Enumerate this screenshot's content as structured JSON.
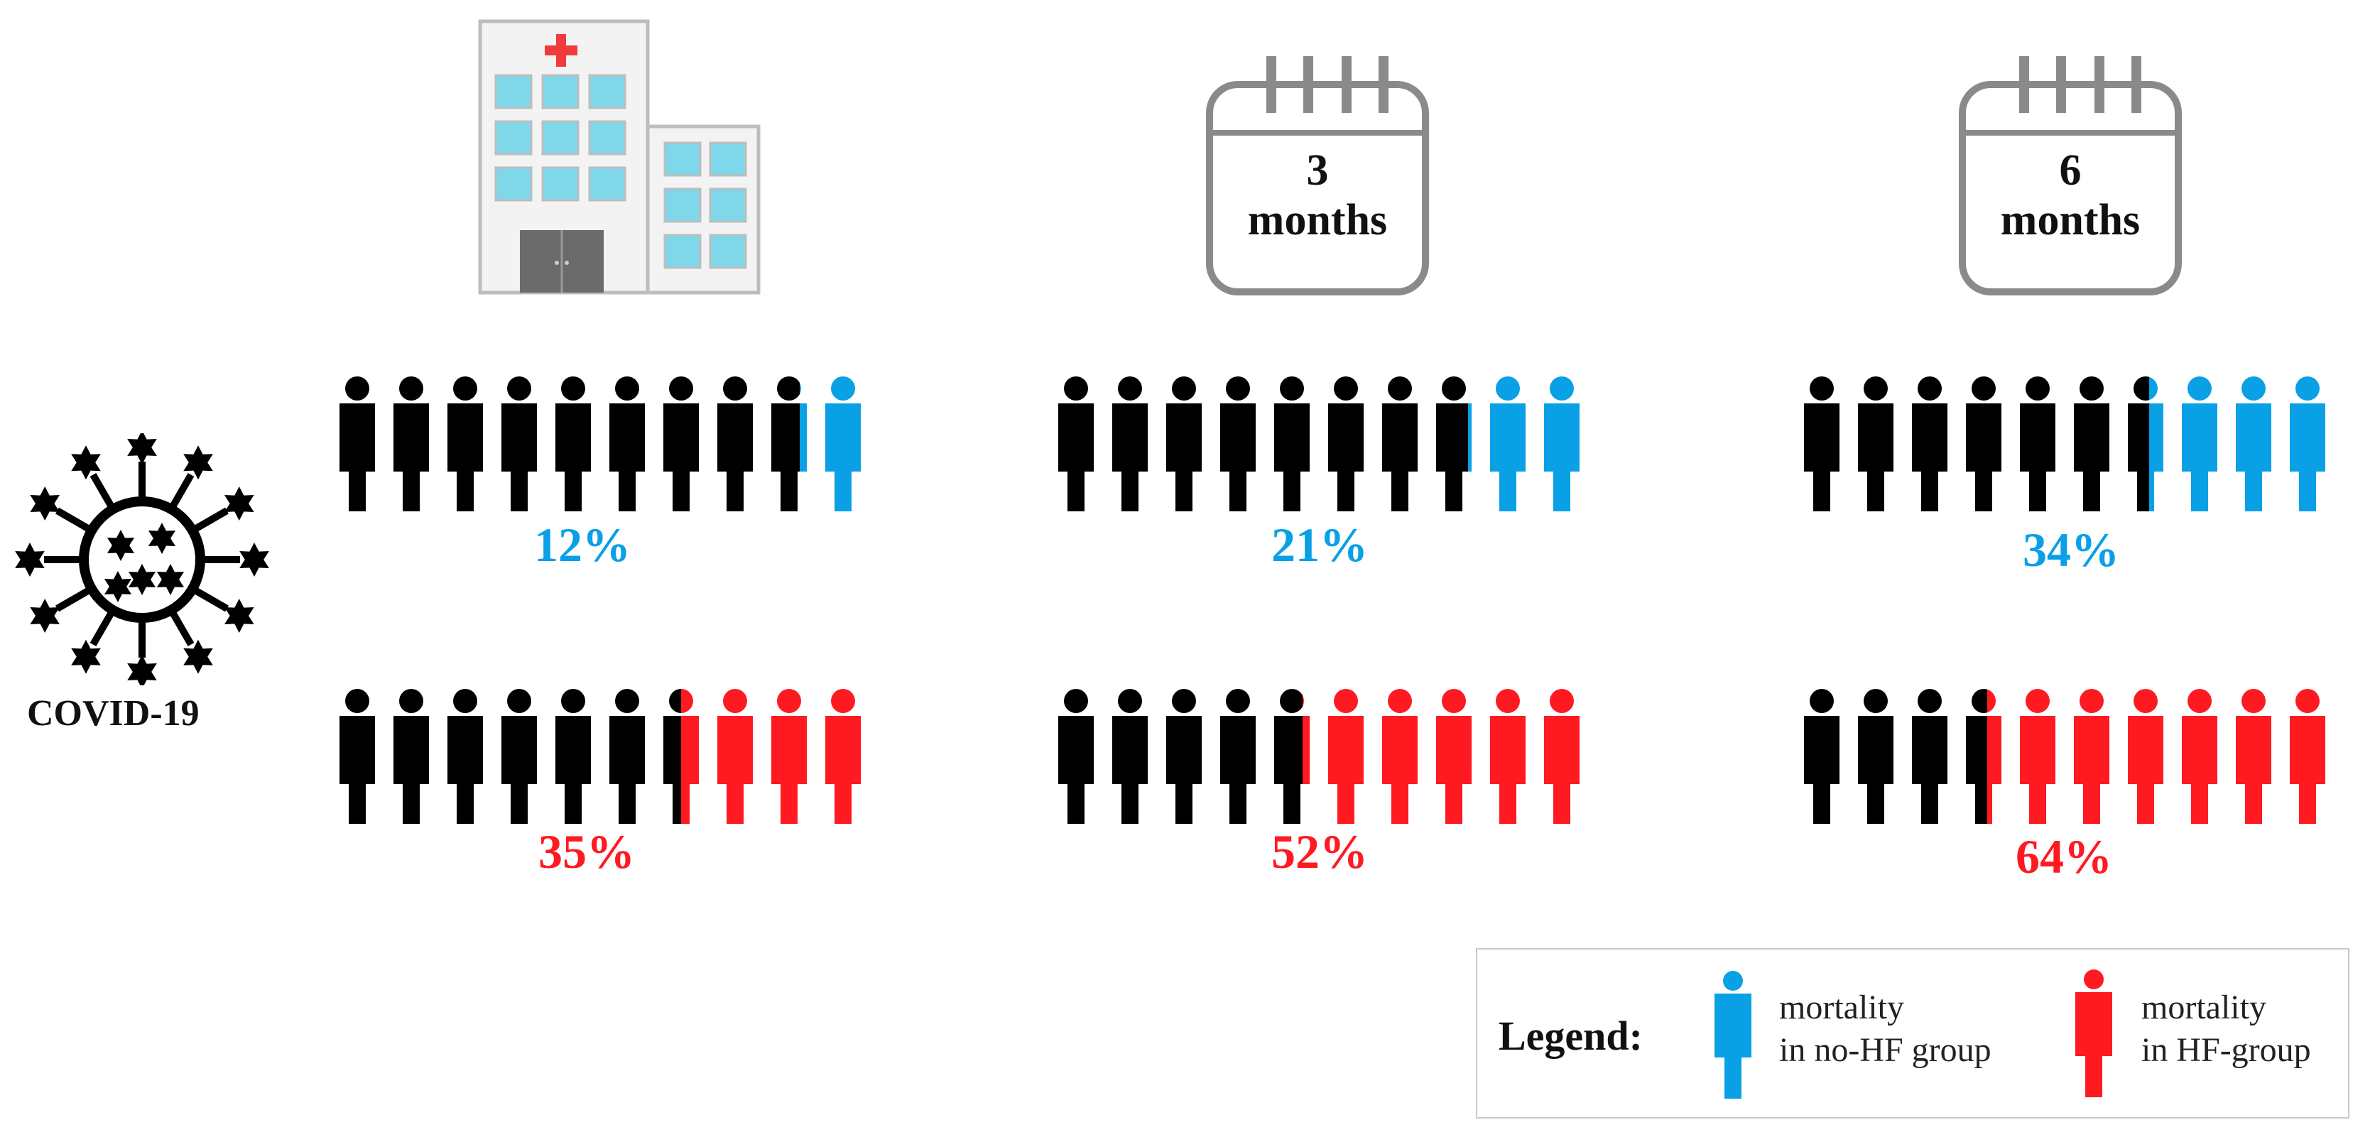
{
  "colors": {
    "no_hf": "#0aa0e6",
    "hf": "#ff1a22",
    "base": "#000000",
    "icon_grey": "#8a8a8a",
    "window": "#7fd8ea"
  },
  "covid_label": "COVID-19",
  "columns": [
    {
      "icon": "hospital-icon",
      "calendar_number": "",
      "calendar_unit": ""
    },
    {
      "icon": "calendar-icon",
      "calendar_number": "3",
      "calendar_unit": "months"
    },
    {
      "icon": "calendar-icon",
      "calendar_number": "6",
      "calendar_unit": "months"
    }
  ],
  "legend": {
    "title": "Legend:",
    "no_hf_line1": "mortality",
    "no_hf_line2": "in no-HF group",
    "hf_line1": "mortality",
    "hf_line2": "in HF-group"
  },
  "chart_data": {
    "type": "pictograph",
    "unit": "%",
    "categories": [
      "In-hospital",
      "3 months",
      "6 months"
    ],
    "series": [
      {
        "key": "no_hf",
        "values": [
          12,
          21,
          34
        ],
        "labels": [
          "12%",
          "21%",
          "34%"
        ]
      },
      {
        "key": "hf",
        "values": [
          35,
          52,
          64
        ],
        "labels": [
          "35%",
          "52%",
          "64%"
        ]
      }
    ]
  }
}
